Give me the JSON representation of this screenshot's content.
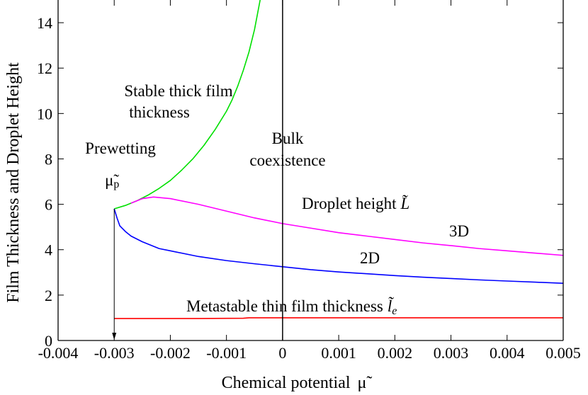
{
  "chart_data": {
    "type": "line",
    "title": "",
    "xlabel": "Chemical potential",
    "xlabel_symbol": "μ̃",
    "ylabel": "Film Thickness and Droplet Height",
    "xlim": [
      -0.004,
      0.005
    ],
    "ylim": [
      0,
      15
    ],
    "grid": false,
    "xticks": [
      -0.004,
      -0.003,
      -0.002,
      -0.001,
      0,
      0.001,
      0.002,
      0.003,
      0.004,
      0.005
    ],
    "xtick_labels": [
      "-0.004",
      "-0.003",
      "-0.002",
      "-0.001",
      "0",
      "0.001",
      "0.002",
      "0.003",
      "0.004",
      "0.005"
    ],
    "yticks": [
      0,
      2,
      4,
      6,
      8,
      10,
      12,
      14
    ],
    "ytick_labels": [
      "0",
      "2",
      "4",
      "6",
      "8",
      "10",
      "12",
      "14"
    ],
    "series": [
      {
        "label": "Stable thick film thickness",
        "color": "#00e000",
        "points": [
          [
            -0.003,
            5.8
          ],
          [
            -0.0028,
            5.95
          ],
          [
            -0.0026,
            6.15
          ],
          [
            -0.0024,
            6.4
          ],
          [
            -0.0022,
            6.7
          ],
          [
            -0.002,
            7.05
          ],
          [
            -0.0018,
            7.5
          ],
          [
            -0.0016,
            8.0
          ],
          [
            -0.0014,
            8.6
          ],
          [
            -0.0012,
            9.3
          ],
          [
            -0.001,
            10.1
          ],
          [
            -0.0009,
            10.6
          ],
          [
            -0.0008,
            11.2
          ],
          [
            -0.0007,
            11.9
          ],
          [
            -0.0006,
            12.7
          ],
          [
            -0.0005,
            13.7
          ],
          [
            -0.0004,
            15.0
          ]
        ]
      },
      {
        "label": "Droplet height L̃ (3D)",
        "color": "#ff00ff",
        "points": [
          [
            -0.0027,
            6.05
          ],
          [
            -0.0025,
            6.25
          ],
          [
            -0.0023,
            6.32
          ],
          [
            -0.002,
            6.25
          ],
          [
            -0.0015,
            6.0
          ],
          [
            -0.001,
            5.7
          ],
          [
            -0.0005,
            5.4
          ],
          [
            0,
            5.15
          ],
          [
            0.0005,
            4.95
          ],
          [
            0.001,
            4.75
          ],
          [
            0.0015,
            4.6
          ],
          [
            0.002,
            4.45
          ],
          [
            0.0025,
            4.3
          ],
          [
            0.003,
            4.18
          ],
          [
            0.0035,
            4.05
          ],
          [
            0.004,
            3.95
          ],
          [
            0.0045,
            3.85
          ],
          [
            0.005,
            3.75
          ]
        ]
      },
      {
        "label": "2D",
        "color": "#0000ff",
        "points": [
          [
            -0.003,
            5.8
          ],
          [
            -0.00295,
            5.4
          ],
          [
            -0.0029,
            5.05
          ],
          [
            -0.0028,
            4.8
          ],
          [
            -0.0027,
            4.6
          ],
          [
            -0.0025,
            4.35
          ],
          [
            -0.0022,
            4.05
          ],
          [
            -0.002,
            3.95
          ],
          [
            -0.0015,
            3.7
          ],
          [
            -0.001,
            3.52
          ],
          [
            -0.0005,
            3.38
          ],
          [
            0,
            3.25
          ],
          [
            0.0005,
            3.12
          ],
          [
            0.001,
            3.02
          ],
          [
            0.0015,
            2.94
          ],
          [
            0.002,
            2.86
          ],
          [
            0.0025,
            2.79
          ],
          [
            0.003,
            2.73
          ],
          [
            0.0035,
            2.67
          ],
          [
            0.004,
            2.62
          ],
          [
            0.0045,
            2.57
          ],
          [
            0.005,
            2.52
          ]
        ]
      },
      {
        "label": "Metastable thin film thickness l̃e",
        "color": "#ff0000",
        "points": [
          [
            -0.003,
            0.97
          ],
          [
            -0.0015,
            0.97
          ],
          [
            -0.0007,
            0.98
          ],
          [
            -0.0006,
            1.0
          ],
          [
            0,
            1.0
          ],
          [
            0.005,
            1.0
          ]
        ]
      }
    ],
    "vertical_lines": [
      {
        "label": "Bulk coexistence",
        "x": 0,
        "y_range": [
          0,
          15
        ],
        "color": "#000000"
      },
      {
        "label": "Prewetting μ̃p",
        "x": -0.003,
        "y_range": [
          0,
          5.8
        ],
        "color": "#000000",
        "arrow": "down"
      }
    ],
    "annotations": {
      "stable_line1": "Stable thick film",
      "stable_line2": "thickness",
      "bulk_line1": "Bulk",
      "bulk_line2": "coexistence",
      "prewetting": "Prewetting",
      "mu_p": "μ̃",
      "mu_p_sub": "p",
      "droplet": "Droplet height",
      "droplet_symbol": "L̃",
      "label_3d": "3D",
      "label_2d": "2D",
      "metastable": "Metastable thin film thickness",
      "metastable_symbol": "l̃",
      "metastable_sub": "e"
    }
  }
}
